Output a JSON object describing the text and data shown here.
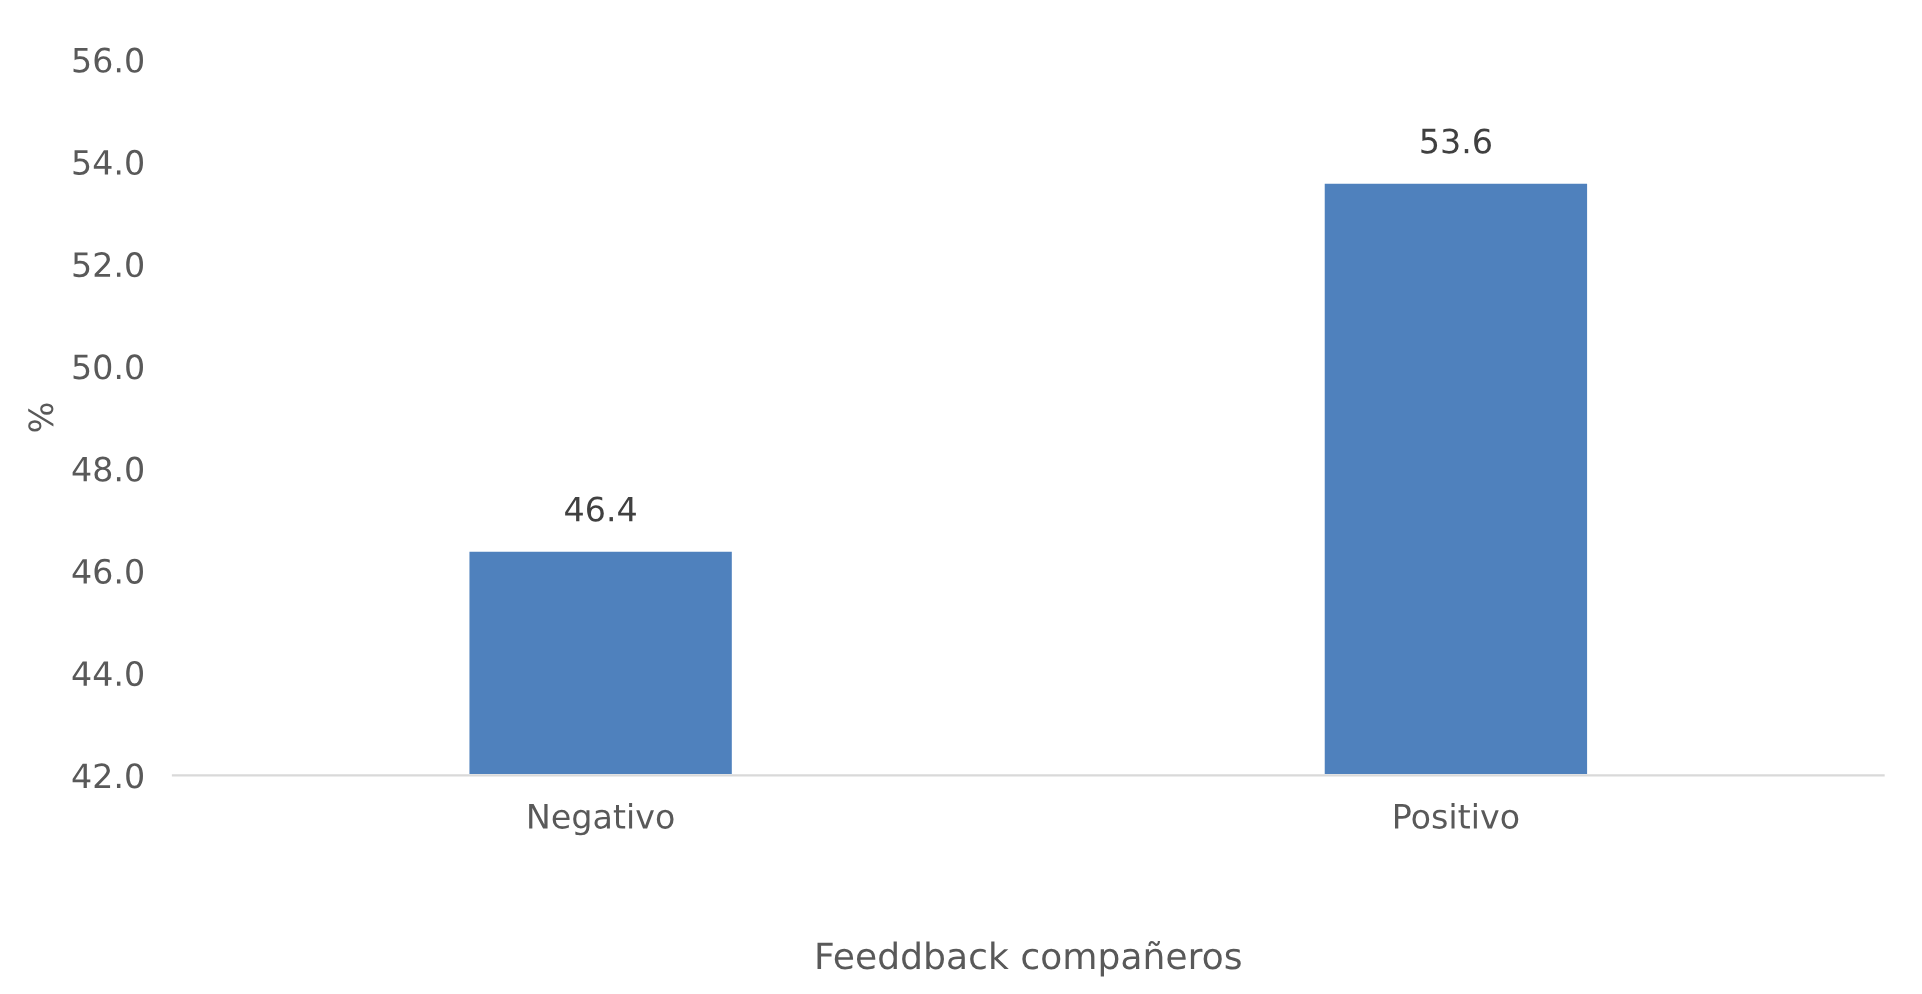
{
  "chart_data": {
    "type": "bar",
    "xlabel": "Feeddback compañeros",
    "ylabel": "%",
    "categories": [
      "Negativo",
      "Positivo"
    ],
    "values": [
      46.4,
      53.6
    ],
    "color": "#4f81bd",
    "ylim": [
      42,
      56
    ],
    "yticks": [
      {
        "value": 42,
        "label": "42.0"
      },
      {
        "value": 44,
        "label": "44.0"
      },
      {
        "value": 46,
        "label": "46.0"
      },
      {
        "value": 48,
        "label": "48.0"
      },
      {
        "value": 50,
        "label": "50.0"
      },
      {
        "value": 52,
        "label": "52.0"
      },
      {
        "value": 54,
        "label": "54.0"
      },
      {
        "value": 56,
        "label": "56.0"
      }
    ],
    "data_labels": true,
    "grid": false
  }
}
